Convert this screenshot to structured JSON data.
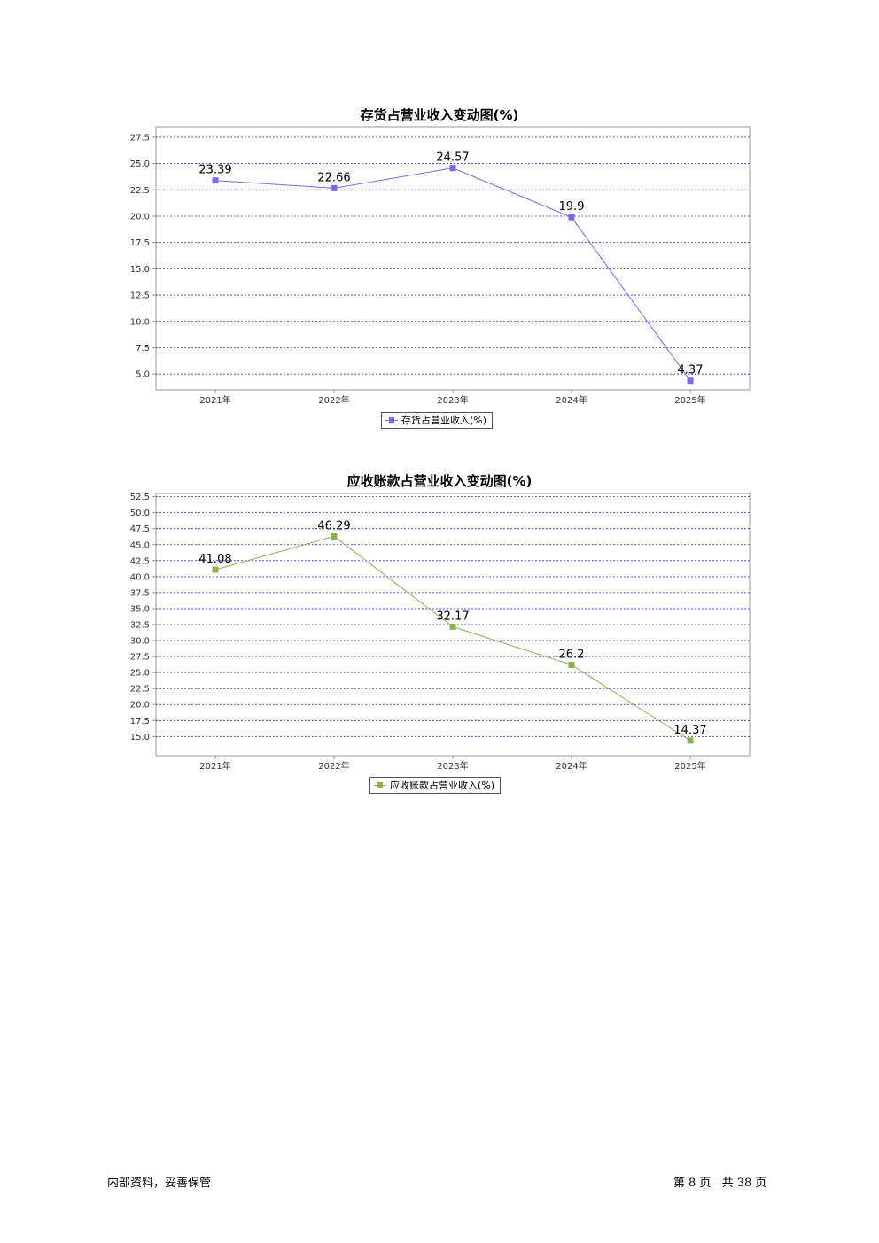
{
  "chart_data": [
    {
      "type": "line",
      "title": "存货占营业收入变动图(%)",
      "categories": [
        "2021年",
        "2022年",
        "2023年",
        "2024年",
        "2025年"
      ],
      "series": [
        {
          "name": "存货占营业收入(%)",
          "values": [
            23.39,
            22.66,
            24.57,
            19.9,
            4.37
          ]
        }
      ],
      "data_labels": [
        "23.39",
        "22.66",
        "24.57",
        "19.9",
        "4.37"
      ],
      "ylim": [
        3.5,
        28.5
      ],
      "yticks": [
        "5.0",
        "7.5",
        "10.0",
        "12.5",
        "15.0",
        "17.5",
        "20.0",
        "22.5",
        "25.0",
        "27.5"
      ],
      "grid": true,
      "legend_position": "bottom",
      "color": "#7b68ee"
    },
    {
      "type": "line",
      "title": "应收账款占营业收入变动图(%)",
      "categories": [
        "2021年",
        "2022年",
        "2023年",
        "2024年",
        "2025年"
      ],
      "series": [
        {
          "name": "应收账款占营业收入(%)",
          "values": [
            41.08,
            46.29,
            32.17,
            26.2,
            14.37
          ]
        }
      ],
      "data_labels": [
        "41.08",
        "46.29",
        "32.17",
        "26.2",
        "14.37"
      ],
      "ylim": [
        12.0,
        53.0
      ],
      "yticks": [
        "15.0",
        "17.5",
        "20.0",
        "22.5",
        "25.0",
        "27.5",
        "30.0",
        "32.5",
        "35.0",
        "37.5",
        "40.0",
        "42.5",
        "45.0",
        "47.5",
        "50.0",
        "52.5"
      ],
      "grid": true,
      "legend_position": "bottom",
      "color": "#8db04f"
    }
  ],
  "footer": {
    "left_text": "内部资料，妥善保管",
    "page_prefix": "第",
    "page_number": "8",
    "page_unit": "页",
    "total_prefix": "共",
    "total_pages": "38",
    "total_unit": "页"
  }
}
